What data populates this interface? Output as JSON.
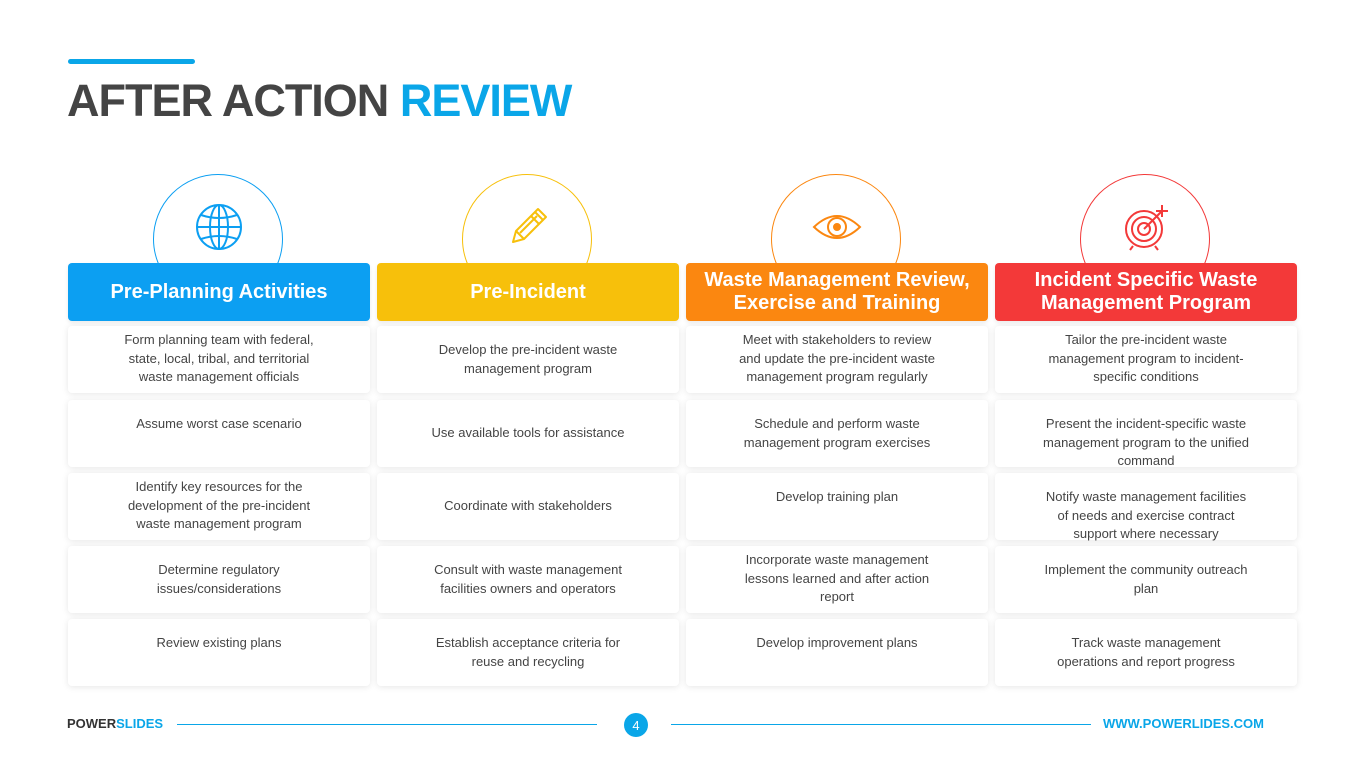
{
  "title": {
    "part1": "AFTER ACTION",
    "part2": "REVIEW"
  },
  "columns": [
    {
      "header": "Pre-Planning Activities",
      "icon": "globe-icon",
      "color": "#0c9ff2",
      "items": [
        "Form planning team with federal, state, local, tribal, and territorial waste management officials",
        "Assume worst case scenario",
        "Identify key resources for the development of the pre-incident waste management program",
        "Determine regulatory issues/considerations",
        "Review existing plans"
      ]
    },
    {
      "header": "Pre-Incident",
      "icon": "pencil-icon",
      "color": "#f7c00b",
      "items": [
        "Develop the pre-incident waste management program",
        "Use available tools for assistance",
        "Coordinate with stakeholders",
        "Consult with waste management facilities owners and operators",
        "Establish acceptance criteria for reuse and recycling"
      ]
    },
    {
      "header": "Waste Management Review, Exercise and Training",
      "icon": "eye-icon",
      "color": "#fb8710",
      "items": [
        "Meet with stakeholders to review and update the pre-incident waste management program regularly",
        "Schedule and perform waste management program exercises",
        "Develop training plan",
        "Incorporate waste management lessons learned and after action report",
        "Develop improvement plans"
      ]
    },
    {
      "header": "Incident Specific Waste Management Program",
      "icon": "target-icon",
      "color": "#f33939",
      "items": [
        "Tailor the pre-incident waste management program to incident-specific conditions",
        "Present the incident-specific waste management program to the unified command",
        "Notify waste management facilities of needs and exercise contract support where necessary",
        "Implement the community outreach plan",
        "Track waste management operations and report progress"
      ]
    }
  ],
  "footer": {
    "brand_part1": "POWER",
    "brand_part2": "SLIDES",
    "page_number": "4",
    "url": "WWW.POWERLIDES.COM"
  }
}
